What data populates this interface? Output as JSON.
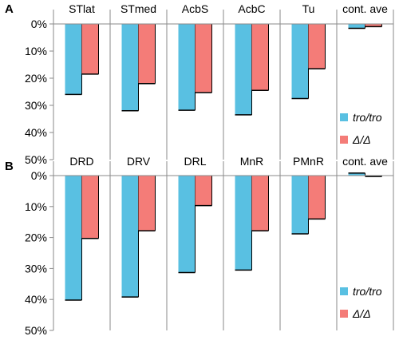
{
  "colors": {
    "tro": "#59c0e2",
    "delta": "#f47c78",
    "axis": "#8a8a8a",
    "bar_edge": "#000000"
  },
  "chart_data": [
    {
      "type": "bar",
      "panel_label": "A",
      "categories": [
        "STlat",
        "STmed",
        "AcbS",
        "AcbC",
        "Tu",
        "cont. ave"
      ],
      "y_ticks": [
        "0%",
        "10%",
        "20%",
        "30%",
        "40%",
        "50%"
      ],
      "ylim": [
        0,
        50
      ],
      "y_inverted": true,
      "series": [
        {
          "name": "tro/tro",
          "values": [
            26,
            32,
            31.8,
            33.5,
            27.5,
            1.6
          ]
        },
        {
          "name": "Δ/Δ",
          "values": [
            18.5,
            22,
            25.3,
            24.5,
            16.5,
            1
          ]
        }
      ],
      "legend": {
        "position": "bottom-right"
      }
    },
    {
      "type": "bar",
      "panel_label": "B",
      "categories": [
        "DRD",
        "DRV",
        "DRL",
        "MnR",
        "PMnR",
        "cont. ave"
      ],
      "y_ticks": [
        "0%",
        "10%",
        "20%",
        "30%",
        "40%",
        "50%"
      ],
      "ylim": [
        0,
        50
      ],
      "y_inverted": true,
      "series": [
        {
          "name": "tro/tro",
          "values": [
            40.2,
            39.2,
            31.3,
            30.5,
            18.8,
            -0.8
          ]
        },
        {
          "name": "Δ/Δ",
          "values": [
            20.3,
            17.8,
            9.7,
            17.8,
            14,
            0.3
          ]
        }
      ],
      "legend": {
        "position": "bottom-right"
      }
    }
  ]
}
